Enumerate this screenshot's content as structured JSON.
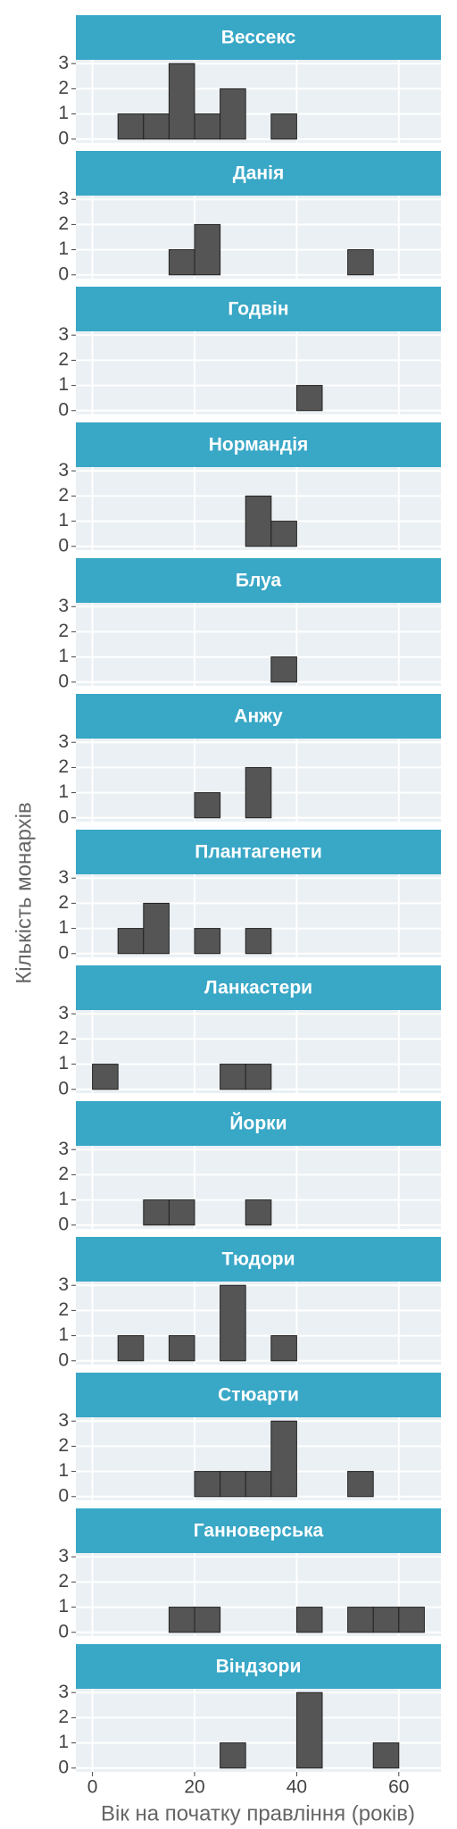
{
  "chart_data": {
    "type": "histogram",
    "xlabel": "Вік на початку правління (років)",
    "ylabel": "Кількість монархів",
    "bins": [
      0,
      5,
      10,
      15,
      20,
      25,
      30,
      35,
      40,
      45,
      50,
      55,
      60,
      65
    ],
    "xlim": [
      -3.25,
      68.25
    ],
    "xticks": [
      0,
      20,
      40,
      60
    ],
    "ylim": [
      -0.15,
      3.15
    ],
    "yticks": [
      0,
      1,
      2,
      3
    ],
    "color": "#555555",
    "strip_color": "#39a7c6",
    "panel_color": "#eaf0f4",
    "grid": true,
    "facets": [
      {
        "title": "Вессекс",
        "counts": [
          0,
          1,
          1,
          3,
          1,
          2,
          0,
          1,
          0,
          0,
          0,
          0,
          0
        ]
      },
      {
        "title": "Данія",
        "counts": [
          0,
          0,
          0,
          1,
          2,
          0,
          0,
          0,
          0,
          0,
          1,
          0,
          0
        ]
      },
      {
        "title": "Годвін",
        "counts": [
          0,
          0,
          0,
          0,
          0,
          0,
          0,
          0,
          1,
          0,
          0,
          0,
          0
        ]
      },
      {
        "title": "Нормандія",
        "counts": [
          0,
          0,
          0,
          0,
          0,
          0,
          2,
          1,
          0,
          0,
          0,
          0,
          0
        ]
      },
      {
        "title": "Блуа",
        "counts": [
          0,
          0,
          0,
          0,
          0,
          0,
          0,
          1,
          0,
          0,
          0,
          0,
          0
        ]
      },
      {
        "title": "Анжу",
        "counts": [
          0,
          0,
          0,
          0,
          1,
          0,
          2,
          0,
          0,
          0,
          0,
          0,
          0
        ]
      },
      {
        "title": "Плантагенети",
        "counts": [
          0,
          1,
          2,
          0,
          1,
          0,
          1,
          0,
          0,
          0,
          0,
          0,
          0
        ]
      },
      {
        "title": "Ланкастери",
        "counts": [
          1,
          0,
          0,
          0,
          0,
          1,
          1,
          0,
          0,
          0,
          0,
          0,
          0
        ]
      },
      {
        "title": "Йорки",
        "counts": [
          0,
          0,
          1,
          1,
          0,
          0,
          1,
          0,
          0,
          0,
          0,
          0,
          0
        ]
      },
      {
        "title": "Тюдори",
        "counts": [
          0,
          1,
          0,
          1,
          0,
          3,
          0,
          1,
          0,
          0,
          0,
          0,
          0
        ]
      },
      {
        "title": "Стюарти",
        "counts": [
          0,
          0,
          0,
          0,
          1,
          1,
          1,
          3,
          0,
          0,
          1,
          0,
          0
        ]
      },
      {
        "title": "Ганноверська",
        "counts": [
          0,
          0,
          0,
          1,
          1,
          0,
          0,
          0,
          1,
          0,
          1,
          1,
          1
        ]
      },
      {
        "title": "Віндзори",
        "counts": [
          0,
          0,
          0,
          0,
          0,
          1,
          0,
          0,
          3,
          0,
          0,
          1,
          0
        ]
      }
    ]
  }
}
